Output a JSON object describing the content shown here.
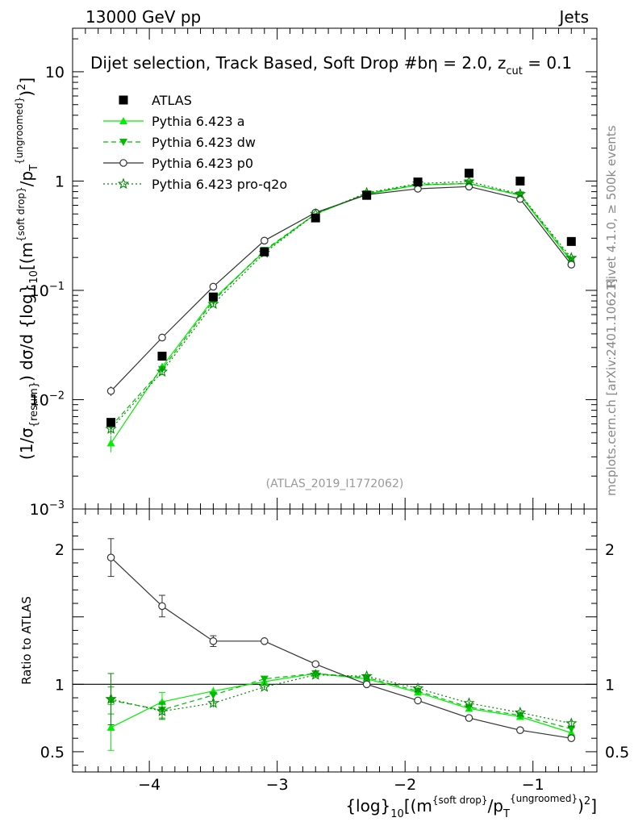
{
  "header": {
    "left": "13000 GeV pp",
    "right": "Jets",
    "side_rivet": "Rivet 4.1.0, ≥ 500k events",
    "side_mcplots": "mcplots.cern.ch [arXiv:2401.10621]"
  },
  "chart_data": {
    "type": "scatter",
    "title": "Dijet selection, Track Based, Soft Drop #b",
    "title_suffix": "η = 2.0, z",
    "title_cut": "cut",
    "title_value": " = 0.1",
    "analysis_id": "(ATLAS_2019_I1772062)",
    "ylabel": "(1/σ{resum}) dσ/d {log}10[(m{soft drop}/pT{ungroomed})2]",
    "ylabel_parts": {
      "a": "(1/σ",
      "b": "{resum}",
      "c": ") dσ/d {log}",
      "d": "10",
      "e": "[(m",
      "f": "{soft drop}",
      "g": "/p",
      "h": "T",
      "i": "{ungroomed}",
      "j": ")",
      "k": "2",
      "l": "]"
    },
    "xlabel_parts": {
      "a": "{log}",
      "b": "10",
      "c": "[(m",
      "d": "{soft drop}",
      "e": "/p",
      "f": "T",
      "g": "{ungroomed}",
      "h": ")",
      "i": "2",
      "j": "]"
    },
    "ratio_ylabel": "Ratio to ATLAS",
    "xlim": [
      -4.6,
      -0.5
    ],
    "ylim_main": [
      0.001,
      25
    ],
    "yscale_main": "log",
    "ylim_ratio": [
      0.35,
      2.3
    ],
    "x_ticks": [
      -4,
      -3,
      -2,
      -1
    ],
    "x_tick_labels": [
      "−4",
      "−3",
      "−2",
      "−1"
    ],
    "y_ticks_main": [
      {
        "value": 10,
        "base": "10",
        "exp": ""
      },
      {
        "value": 1,
        "base": "1",
        "exp": ""
      },
      {
        "value": 0.1,
        "base": "10",
        "exp": "−1"
      },
      {
        "value": 0.01,
        "base": "10",
        "exp": "−2"
      },
      {
        "value": 0.001,
        "base": "10",
        "exp": "−3"
      }
    ],
    "y_ticks_ratio": [
      {
        "value": 2,
        "label": "2"
      },
      {
        "value": 1,
        "label": "1"
      },
      {
        "value": 0.5,
        "label": "0.5"
      }
    ],
    "x": [
      -4.3,
      -3.9,
      -3.5,
      -3.1,
      -2.7,
      -2.3,
      -1.9,
      -1.5,
      -1.1,
      -0.7
    ],
    "data": {
      "name": "ATLAS",
      "values": [
        0.0062,
        0.025,
        0.087,
        0.225,
        0.46,
        0.74,
        0.98,
        1.18,
        1.0,
        0.28
      ]
    },
    "series": [
      {
        "name": "Pythia 6.423 a",
        "color": "#00ee00",
        "dash": "",
        "marker": "triangle-up",
        "values": [
          0.004,
          0.02,
          0.083,
          0.228,
          0.5,
          0.76,
          0.92,
          0.95,
          0.74,
          0.183
        ],
        "errors": [
          0.0007,
          0.0012,
          0.003,
          0.004,
          0.006,
          0.006,
          0.008,
          0.008,
          0.008,
          0.004
        ],
        "ratio": [
          0.68,
          0.87,
          0.95,
          1.02,
          1.08,
          1.04,
          0.94,
          0.82,
          0.76,
          0.64
        ],
        "ratio_errors": [
          0.17,
          0.07,
          0.03,
          0.02,
          0.01,
          0.01,
          0.01,
          0.01,
          0.01,
          0.02
        ]
      },
      {
        "name": "Pythia 6.423 dw",
        "color": "#00bb00",
        "dash": "6,4",
        "marker": "triangle-down",
        "values": [
          0.0057,
          0.019,
          0.08,
          0.233,
          0.5,
          0.77,
          0.93,
          0.95,
          0.75,
          0.19
        ],
        "errors": [
          0.0006,
          0.0012,
          0.003,
          0.004,
          0.006,
          0.006,
          0.008,
          0.008,
          0.008,
          0.004
        ],
        "ratio": [
          0.88,
          0.81,
          0.92,
          1.04,
          1.08,
          1.05,
          0.95,
          0.83,
          0.77,
          0.67
        ],
        "ratio_errors": [
          0.1,
          0.06,
          0.03,
          0.02,
          0.01,
          0.01,
          0.01,
          0.01,
          0.01,
          0.02
        ]
      },
      {
        "name": "Pythia 6.423 p0",
        "color": "#333333",
        "dash": "",
        "marker": "circle-open",
        "values": [
          0.012,
          0.037,
          0.108,
          0.285,
          0.515,
          0.75,
          0.85,
          0.89,
          0.685,
          0.172
        ],
        "errors": [
          0.0012,
          0.0015,
          0.003,
          0.004,
          0.006,
          0.006,
          0.008,
          0.008,
          0.008,
          0.004
        ],
        "ratio": [
          1.94,
          1.58,
          1.32,
          1.32,
          1.15,
          1.0,
          0.88,
          0.75,
          0.66,
          0.6
        ],
        "ratio_errors": [
          0.14,
          0.08,
          0.04,
          0.02,
          0.01,
          0.01,
          0.01,
          0.01,
          0.01,
          0.02
        ]
      },
      {
        "name": "Pythia 6.423 pro-q2o",
        "color": "#008800",
        "dash": "2,3",
        "marker": "star-open",
        "values": [
          0.0054,
          0.018,
          0.075,
          0.22,
          0.5,
          0.78,
          0.95,
          0.99,
          0.76,
          0.198
        ],
        "errors": [
          0.0006,
          0.0012,
          0.003,
          0.004,
          0.006,
          0.006,
          0.008,
          0.008,
          0.008,
          0.004
        ],
        "ratio": [
          0.89,
          0.8,
          0.86,
          0.98,
          1.07,
          1.06,
          0.97,
          0.86,
          0.79,
          0.71
        ],
        "ratio_errors": [
          0.19,
          0.06,
          0.03,
          0.02,
          0.01,
          0.01,
          0.01,
          0.01,
          0.01,
          0.02
        ]
      }
    ]
  }
}
